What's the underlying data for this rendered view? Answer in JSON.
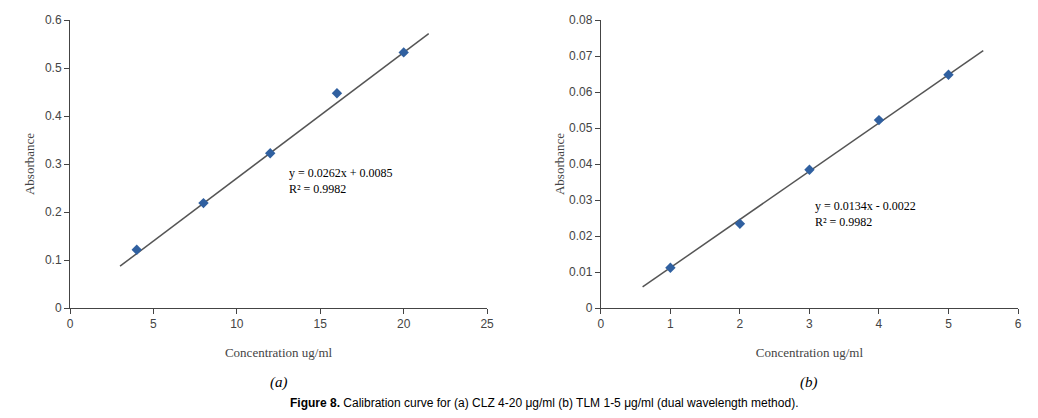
{
  "chart_data": [
    {
      "type": "scatter",
      "subtitle": "(a)",
      "x_label": "Concentration ug/ml",
      "y_label": "Absorbance",
      "xlim": [
        0,
        25
      ],
      "ylim": [
        0,
        0.6
      ],
      "xticks": [
        0,
        5,
        10,
        15,
        20,
        25
      ],
      "yticks": [
        0,
        0.1,
        0.2,
        0.3,
        0.4,
        0.5,
        0.6
      ],
      "grid": false,
      "series": [
        {
          "type": "line",
          "color": "#555555",
          "line_style": "solid",
          "x": [
            3.0,
            21.5
          ],
          "values": [
            0.0871,
            0.5718
          ]
        },
        {
          "type": "scatter",
          "color": "#3060a0",
          "marker": "diamond",
          "x": [
            4,
            8,
            12,
            16,
            20
          ],
          "values": [
            0.1215,
            0.2185,
            0.3225,
            0.4475,
            0.5325
          ]
        }
      ],
      "annotations": [
        {
          "text": [
            "y = 0.0262x + 0.0085",
            "R² = 0.9982"
          ],
          "x": 13.0,
          "y": 0.265
        }
      ]
    },
    {
      "type": "scatter",
      "subtitle": "(b)",
      "x_label": "Concentration ug/ml",
      "y_label": "Absorbance",
      "xlim": [
        0,
        6
      ],
      "ylim": [
        0,
        0.08
      ],
      "xticks": [
        0,
        1,
        2,
        3,
        4,
        5,
        6
      ],
      "yticks": [
        0,
        0.01,
        0.02,
        0.03,
        0.04,
        0.05,
        0.06,
        0.07,
        0.08
      ],
      "grid": false,
      "series": [
        {
          "type": "line",
          "color": "#555555",
          "line_style": "solid",
          "x": [
            0.6,
            5.5
          ],
          "values": [
            0.00584,
            0.0715
          ]
        },
        {
          "type": "scatter",
          "color": "#3060a0",
          "marker": "diamond",
          "x": [
            1,
            2,
            3,
            4,
            5
          ],
          "values": [
            0.0112,
            0.0234,
            0.0384,
            0.0522,
            0.0648
          ]
        }
      ],
      "annotations": [
        {
          "text": [
            "y = 0.0134x - 0.0022",
            "R² = 0.9982"
          ],
          "x": 3.05,
          "y": 0.026
        }
      ]
    }
  ],
  "caption": {
    "bold": "Figure 8.",
    "text": " Calibration curve for (a) CLZ 4-20 μg/ml (b) TLM 1-5 μg/ml (dual wavelength method)."
  }
}
